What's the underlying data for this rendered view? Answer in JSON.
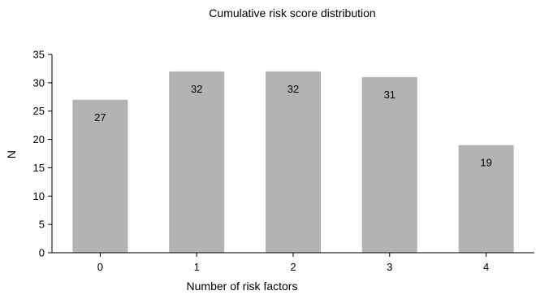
{
  "chart_data": {
    "type": "bar",
    "title": "Cumulative risk score distribution",
    "xlabel": "Number of risk factors",
    "ylabel": "N",
    "categories": [
      "0",
      "1",
      "2",
      "3",
      "4"
    ],
    "values": [
      27,
      32,
      32,
      31,
      19
    ],
    "ylim": [
      0,
      35
    ],
    "yticks": [
      0,
      5,
      10,
      15,
      20,
      25,
      30,
      35
    ],
    "data_labels": [
      "27",
      "32",
      "32",
      "31",
      "19"
    ],
    "grid": false,
    "legend": "none",
    "colors": {
      "bar": "#b3b3b3",
      "axis": "#000000",
      "text": "#000000"
    }
  }
}
